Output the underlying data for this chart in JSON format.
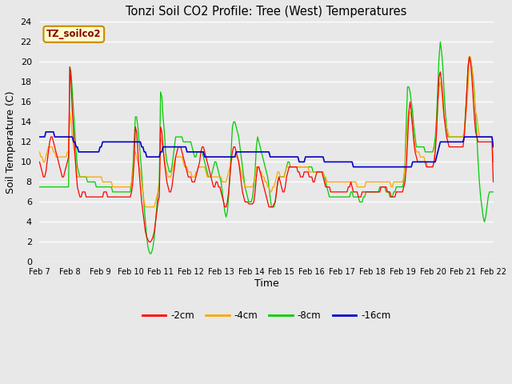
{
  "title": "Tonzi Soil CO2 Profile: Tree (West) Temperatures",
  "xlabel": "Time",
  "ylabel": "Soil Temperature (C)",
  "ylim": [
    0,
    24
  ],
  "background_color": "#e8e8e8",
  "plot_bg_color": "#e8e8e8",
  "grid_color": "#ffffff",
  "legend_label": "TZ_soilco2",
  "legend_box_color": "#ffffcc",
  "legend_box_edge": "#cc8800",
  "line_colors": {
    "-2cm": "#ff0000",
    "-4cm": "#ffa500",
    "-8cm": "#00cc00",
    "-16cm": "#0000cc"
  },
  "x_tick_labels": [
    "Feb 7",
    "Feb 8",
    "Feb 9",
    "Feb 10",
    "Feb 11",
    "Feb 12",
    "Feb 13",
    "Feb 14",
    "Feb 15",
    "Feb 16",
    "Feb 17",
    "Feb 18",
    "Feb 19",
    "Feb 20",
    "Feb 21",
    "Feb 22"
  ],
  "y_ticks": [
    0,
    2,
    4,
    6,
    8,
    10,
    12,
    14,
    16,
    18,
    20,
    22,
    24
  ]
}
